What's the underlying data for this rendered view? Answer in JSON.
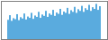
{
  "chart_data": {
    "type": "bar",
    "values": [
      58,
      72,
      55,
      63,
      60,
      75,
      57,
      66,
      62,
      77,
      59,
      68,
      64,
      79,
      61,
      71,
      67,
      82,
      64,
      74,
      70,
      85,
      67,
      77,
      73,
      88,
      70,
      80,
      76,
      91,
      73,
      83,
      79,
      94,
      76,
      87,
      82,
      97,
      79,
      90,
      85,
      100,
      82,
      93,
      88,
      103,
      85,
      96,
      91,
      106,
      88,
      99
    ],
    "color": "#5aabde",
    "ylim": [
      0,
      115
    ],
    "tick_labels": false
  }
}
